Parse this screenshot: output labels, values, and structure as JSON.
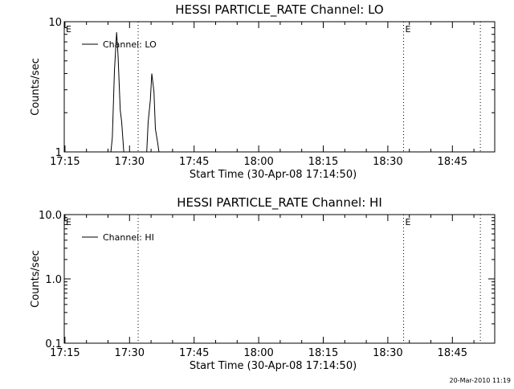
{
  "footer_stamp": "20-Mar-2010 11:19",
  "chart_data": [
    {
      "type": "line",
      "title": "HESSI PARTICLE_RATE Channel: LO",
      "xlabel": "Start Time (30-Apr-08 17:14:50)",
      "ylabel": "Counts/sec",
      "y_scale": "log",
      "xlim": [
        "17:14:50",
        "18:54:50"
      ],
      "ylim": [
        1,
        10
      ],
      "x_ticks": [
        "17:15",
        "17:30",
        "17:45",
        "18:00",
        "18:15",
        "18:30",
        "18:45"
      ],
      "y_ticks": [
        {
          "value": 1,
          "label": "1"
        },
        {
          "value": 10,
          "label": "10"
        }
      ],
      "legend": {
        "position": "top-left",
        "entries": [
          "Channel: LO"
        ]
      },
      "grid": false,
      "series": [
        {
          "name": "Channel: LO",
          "color": "#000000",
          "x": [
            "17:14:50",
            "17:25:40",
            "17:26:00",
            "17:26:30",
            "17:27:00",
            "17:27:20",
            "17:27:50",
            "17:28:10",
            "17:28:40",
            "17:29:00",
            "17:34:00",
            "17:34:20",
            "17:34:50",
            "17:35:10",
            "17:35:40",
            "17:36:00",
            "17:36:30",
            "17:36:50",
            "18:54:50"
          ],
          "values": [
            1,
            1,
            1.3,
            4.2,
            8.3,
            5.5,
            2.1,
            1.7,
            1,
            1,
            1,
            1.7,
            2.5,
            4.0,
            2.9,
            1.5,
            1.2,
            1,
            1
          ]
        }
      ],
      "markers": [
        {
          "x": "17:14:50",
          "label": "E",
          "line": false
        },
        {
          "x": "17:32:00",
          "label": "",
          "line": true
        },
        {
          "x": "18:33:40",
          "label": "E",
          "line": true
        },
        {
          "x": "18:51:30",
          "label": "",
          "line": true
        }
      ]
    },
    {
      "type": "line",
      "title": "HESSI PARTICLE_RATE Channel: HI",
      "xlabel": "Start Time (30-Apr-08 17:14:50)",
      "ylabel": "Counts/sec",
      "y_scale": "log",
      "xlim": [
        "17:14:50",
        "18:54:50"
      ],
      "ylim": [
        0.1,
        10
      ],
      "x_ticks": [
        "17:15",
        "17:30",
        "17:45",
        "18:00",
        "18:15",
        "18:30",
        "18:45"
      ],
      "y_ticks": [
        {
          "value": 0.1,
          "label": "0.1"
        },
        {
          "value": 1,
          "label": "1.0"
        },
        {
          "value": 10,
          "label": "10.0"
        }
      ],
      "legend": {
        "position": "top-left",
        "entries": [
          "Channel: HI"
        ]
      },
      "grid": false,
      "series": [
        {
          "name": "Channel: HI",
          "color": "#000000",
          "x": [],
          "values": []
        }
      ],
      "markers": [
        {
          "x": "17:14:50",
          "label": "E",
          "line": false
        },
        {
          "x": "17:32:00",
          "label": "",
          "line": true
        },
        {
          "x": "18:33:40",
          "label": "E",
          "line": true
        },
        {
          "x": "18:51:30",
          "label": "",
          "line": true
        }
      ]
    }
  ]
}
